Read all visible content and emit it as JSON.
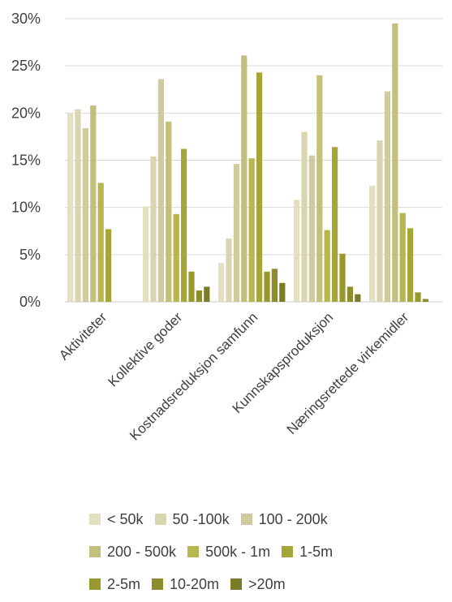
{
  "chart_data": {
    "type": "bar",
    "title": "",
    "xlabel": "",
    "ylabel": "",
    "ylim": [
      0,
      0.3
    ],
    "yticks": [
      "0%",
      "5%",
      "10%",
      "15%",
      "20%",
      "25%",
      "30%"
    ],
    "grid": true,
    "legend_position": "bottom",
    "categories": [
      "Aktiviteter",
      "Kollektive goder",
      "Kostnadsreduksjon samfunn",
      "Kunnskapsproduksjon",
      "Næringsrettede virkemidler"
    ],
    "series": [
      {
        "name": "< 50k",
        "color": "#e2e0c0",
        "values": [
          0.2,
          0.101,
          0.041,
          0.108,
          0.123
        ]
      },
      {
        "name": "50 -100k",
        "color": "#d8d5b0",
        "values": [
          0.204,
          0.154,
          0.067,
          0.18,
          0.171
        ]
      },
      {
        "name": "100 - 200k",
        "color": "#cfcb9d",
        "values": [
          0.184,
          0.236,
          0.146,
          0.155,
          0.223
        ]
      },
      {
        "name": "200 - 500k",
        "color": "#c2c07a",
        "values": [
          0.208,
          0.191,
          0.261,
          0.24,
          0.295
        ]
      },
      {
        "name": "500k - 1m",
        "color": "#b8b64c",
        "values": [
          0.126,
          0.093,
          0.152,
          0.076,
          0.094
        ]
      },
      {
        "name": "1-5m",
        "color": "#a6a538",
        "values": [
          0.077,
          0.162,
          0.243,
          0.164,
          0.078
        ]
      },
      {
        "name": "2-5m",
        "color": "#99982f",
        "values": [
          0.0,
          0.032,
          0.032,
          0.051,
          0.01
        ]
      },
      {
        "name": "10-20m",
        "color": "#8d8d2b",
        "values": [
          0.0,
          0.012,
          0.035,
          0.016,
          0.003
        ]
      },
      {
        "name": ">20m",
        "color": "#7d7c26",
        "values": [
          0.0,
          0.016,
          0.02,
          0.008,
          0.0
        ]
      }
    ]
  },
  "legend": {
    "rows": [
      [
        "< 50k",
        "50 -100k",
        "100 - 200k"
      ],
      [
        "200 - 500k",
        "500k - 1m",
        "1-5m"
      ],
      [
        "2-5m",
        "10-20m",
        ">20m"
      ]
    ]
  }
}
